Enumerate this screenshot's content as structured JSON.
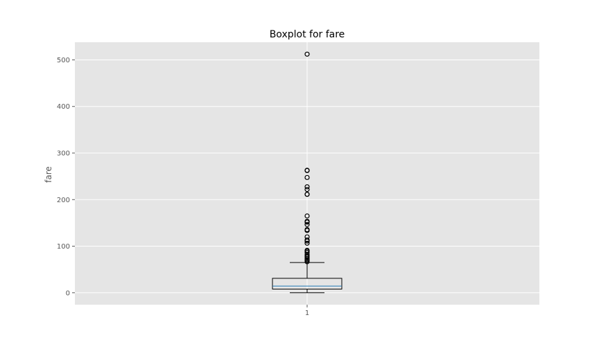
{
  "chart_data": {
    "type": "boxplot",
    "title": "Boxplot for fare",
    "xlabel": "",
    "ylabel": "fare",
    "categories": [
      "1"
    ],
    "yticks": [
      0,
      100,
      200,
      300,
      400,
      500
    ],
    "ylim": [
      -25.6,
      537.9
    ],
    "grid": true,
    "box": {
      "whisker_low": 0,
      "q1": 7.9,
      "median": 14.45,
      "q3": 31.0,
      "whisker_high": 65.0
    },
    "outliers": [
      66.6,
      69.3,
      71.0,
      73.5,
      76.7,
      78.9,
      82.2,
      86.5,
      89.1,
      91.1,
      106.4,
      110.9,
      113.3,
      120.0,
      133.7,
      135.6,
      146.5,
      151.6,
      153.5,
      164.9,
      211.3,
      211.5,
      221.8,
      227.5,
      247.5,
      262.4,
      263.0,
      512.3
    ],
    "colors": {
      "plot_background": "#e5e5e5",
      "grid": "#ffffff",
      "box": "#000000",
      "median": "#1f77b4"
    }
  }
}
